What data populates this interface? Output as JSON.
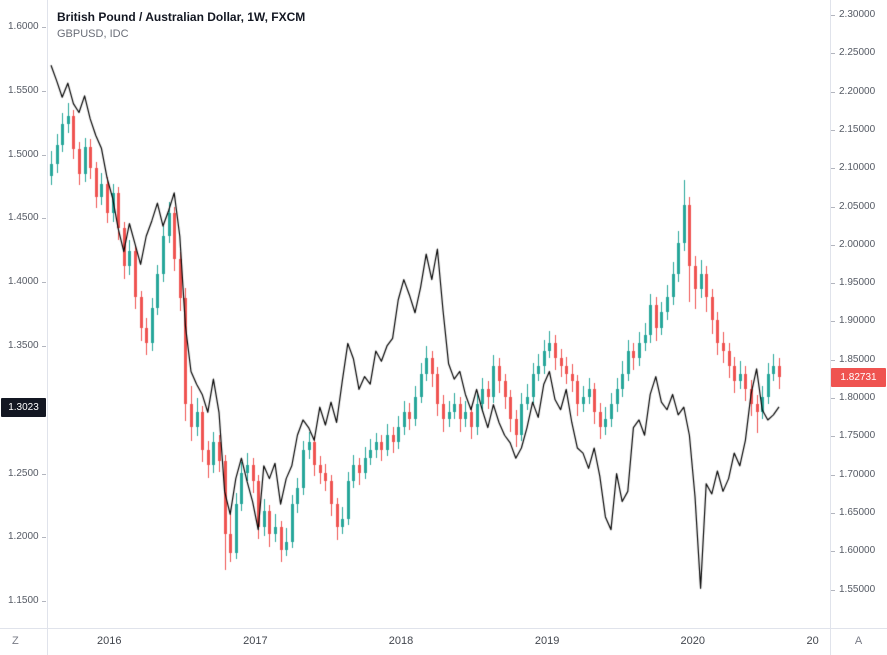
{
  "header": {
    "title": "British Pound / Australian Dollar, 1W, FXCM",
    "subtitle": "GBPUSD, IDC"
  },
  "toolbar": {
    "timezone_label": "Z",
    "autoscale_label": "A"
  },
  "axes": {
    "left": {
      "tick_labels": [
        "1.6000",
        "1.5500",
        "1.5000",
        "1.4500",
        "1.4000",
        "1.3500",
        "1.2500",
        "1.2000",
        "1.1500"
      ],
      "badge": {
        "text": "1.3023",
        "value": 1.3023,
        "bg": "#131722"
      }
    },
    "right": {
      "tick_labels": [
        "2.30000",
        "2.25000",
        "2.20000",
        "2.15000",
        "2.10000",
        "2.05000",
        "2.00000",
        "1.95000",
        "1.90000",
        "1.85000",
        "1.80000",
        "1.75000",
        "1.70000",
        "1.65000",
        "1.60000",
        "1.55000"
      ],
      "badge": {
        "text": "1.82731",
        "value": 1.82731,
        "bg": "#ef5350"
      }
    },
    "time": {
      "labels": [
        {
          "text": "2016",
          "i": 10.4
        },
        {
          "text": "2017",
          "i": 36.5
        },
        {
          "text": "2018",
          "i": 62.5
        },
        {
          "text": "2019",
          "i": 88.6
        },
        {
          "text": "2020",
          "i": 114.6
        },
        {
          "text": "20",
          "i": 136
        }
      ]
    }
  },
  "chart_data": {
    "type": "mixed",
    "timeframe": "1W",
    "left_ylim": [
      1.1289,
      1.6212
    ],
    "right_ylim": [
      1.4998,
      2.3196
    ],
    "series": [
      {
        "name": "British Pound / Australian Dollar, 1W, FXCM",
        "type": "candlestick",
        "axis": "right",
        "up_color": "#26a69a",
        "down_color": "#ef5350",
        "last": 1.82731,
        "ohlc": [
          [
            2.09,
            2.122,
            2.078,
            2.105
          ],
          [
            2.105,
            2.145,
            2.094,
            2.13
          ],
          [
            2.13,
            2.172,
            2.121,
            2.158
          ],
          [
            2.158,
            2.185,
            2.146,
            2.168
          ],
          [
            2.168,
            2.176,
            2.112,
            2.125
          ],
          [
            2.125,
            2.134,
            2.078,
            2.092
          ],
          [
            2.092,
            2.14,
            2.082,
            2.128
          ],
          [
            2.128,
            2.138,
            2.086,
            2.1
          ],
          [
            2.1,
            2.108,
            2.048,
            2.062
          ],
          [
            2.062,
            2.094,
            2.052,
            2.08
          ],
          [
            2.08,
            2.088,
            2.028,
            2.042
          ],
          [
            2.042,
            2.08,
            2.03,
            2.068
          ],
          [
            2.068,
            2.076,
            2.006,
            2.022
          ],
          [
            2.022,
            2.03,
            1.956,
            1.972
          ],
          [
            1.972,
            2.006,
            1.96,
            1.992
          ],
          [
            1.992,
            1.998,
            1.916,
            1.932
          ],
          [
            1.932,
            1.94,
            1.874,
            1.892
          ],
          [
            1.892,
            1.904,
            1.856,
            1.872
          ],
          [
            1.872,
            1.93,
            1.862,
            1.918
          ],
          [
            1.918,
            1.974,
            1.908,
            1.962
          ],
          [
            1.962,
            2.024,
            1.952,
            2.012
          ],
          [
            2.012,
            2.056,
            2.002,
            2.042
          ],
          [
            2.042,
            2.05,
            1.966,
            1.982
          ],
          [
            1.982,
            1.99,
            1.914,
            1.93
          ],
          [
            1.93,
            1.944,
            1.77,
            1.792
          ],
          [
            1.792,
            1.816,
            1.744,
            1.762
          ],
          [
            1.762,
            1.8,
            1.75,
            1.782
          ],
          [
            1.782,
            1.79,
            1.716,
            1.732
          ],
          [
            1.732,
            1.744,
            1.696,
            1.712
          ],
          [
            1.712,
            1.756,
            1.702,
            1.742
          ],
          [
            1.742,
            1.752,
            1.704,
            1.718
          ],
          [
            1.718,
            1.726,
            1.575,
            1.622
          ],
          [
            1.622,
            1.648,
            1.586,
            1.598
          ],
          [
            1.598,
            1.676,
            1.59,
            1.662
          ],
          [
            1.662,
            1.716,
            1.652,
            1.702
          ],
          [
            1.702,
            1.728,
            1.692,
            1.712
          ],
          [
            1.712,
            1.722,
            1.676,
            1.692
          ],
          [
            1.692,
            1.7,
            1.616,
            1.632
          ],
          [
            1.632,
            1.668,
            1.62,
            1.652
          ],
          [
            1.652,
            1.66,
            1.606,
            1.622
          ],
          [
            1.622,
            1.648,
            1.612,
            1.632
          ],
          [
            1.632,
            1.64,
            1.586,
            1.602
          ],
          [
            1.602,
            1.63,
            1.594,
            1.612
          ],
          [
            1.612,
            1.674,
            1.604,
            1.662
          ],
          [
            1.662,
            1.696,
            1.65,
            1.682
          ],
          [
            1.682,
            1.744,
            1.674,
            1.732
          ],
          [
            1.732,
            1.756,
            1.72,
            1.742
          ],
          [
            1.742,
            1.75,
            1.698,
            1.712
          ],
          [
            1.712,
            1.724,
            1.688,
            1.702
          ],
          [
            1.702,
            1.714,
            1.678,
            1.692
          ],
          [
            1.692,
            1.7,
            1.646,
            1.662
          ],
          [
            1.662,
            1.67,
            1.615,
            1.632
          ],
          [
            1.632,
            1.658,
            1.622,
            1.642
          ],
          [
            1.642,
            1.704,
            1.634,
            1.692
          ],
          [
            1.692,
            1.726,
            1.682,
            1.712
          ],
          [
            1.712,
            1.722,
            1.686,
            1.702
          ],
          [
            1.702,
            1.736,
            1.694,
            1.722
          ],
          [
            1.722,
            1.746,
            1.712,
            1.732
          ],
          [
            1.732,
            1.754,
            1.722,
            1.742
          ],
          [
            1.742,
            1.752,
            1.718,
            1.732
          ],
          [
            1.732,
            1.766,
            1.724,
            1.752
          ],
          [
            1.752,
            1.762,
            1.728,
            1.742
          ],
          [
            1.742,
            1.776,
            1.734,
            1.762
          ],
          [
            1.762,
            1.796,
            1.752,
            1.782
          ],
          [
            1.782,
            1.794,
            1.758,
            1.772
          ],
          [
            1.772,
            1.816,
            1.764,
            1.802
          ],
          [
            1.802,
            1.846,
            1.794,
            1.832
          ],
          [
            1.832,
            1.868,
            1.822,
            1.852
          ],
          [
            1.852,
            1.862,
            1.814,
            1.832
          ],
          [
            1.832,
            1.84,
            1.776,
            1.792
          ],
          [
            1.792,
            1.804,
            1.756,
            1.772
          ],
          [
            1.772,
            1.796,
            1.762,
            1.782
          ],
          [
            1.782,
            1.806,
            1.772,
            1.792
          ],
          [
            1.792,
            1.802,
            1.756,
            1.772
          ],
          [
            1.772,
            1.796,
            1.762,
            1.782
          ],
          [
            1.782,
            1.79,
            1.746,
            1.762
          ],
          [
            1.762,
            1.806,
            1.752,
            1.792
          ],
          [
            1.792,
            1.826,
            1.782,
            1.812
          ],
          [
            1.812,
            1.822,
            1.786,
            1.802
          ],
          [
            1.802,
            1.856,
            1.794,
            1.842
          ],
          [
            1.842,
            1.852,
            1.806,
            1.822
          ],
          [
            1.822,
            1.832,
            1.786,
            1.802
          ],
          [
            1.802,
            1.81,
            1.756,
            1.772
          ],
          [
            1.772,
            1.784,
            1.736,
            1.752
          ],
          [
            1.752,
            1.806,
            1.744,
            1.792
          ],
          [
            1.792,
            1.818,
            1.784,
            1.802
          ],
          [
            1.802,
            1.846,
            1.794,
            1.832
          ],
          [
            1.832,
            1.858,
            1.822,
            1.842
          ],
          [
            1.842,
            1.876,
            1.832,
            1.862
          ],
          [
            1.862,
            1.888,
            1.852,
            1.872
          ],
          [
            1.872,
            1.882,
            1.836,
            1.852
          ],
          [
            1.852,
            1.864,
            1.828,
            1.842
          ],
          [
            1.842,
            1.854,
            1.818,
            1.832
          ],
          [
            1.832,
            1.844,
            1.808,
            1.822
          ],
          [
            1.822,
            1.83,
            1.776,
            1.792
          ],
          [
            1.792,
            1.816,
            1.782,
            1.802
          ],
          [
            1.802,
            1.826,
            1.792,
            1.812
          ],
          [
            1.812,
            1.82,
            1.766,
            1.782
          ],
          [
            1.782,
            1.794,
            1.746,
            1.762
          ],
          [
            1.762,
            1.788,
            1.752,
            1.772
          ],
          [
            1.772,
            1.806,
            1.762,
            1.792
          ],
          [
            1.792,
            1.826,
            1.782,
            1.812
          ],
          [
            1.812,
            1.848,
            1.802,
            1.832
          ],
          [
            1.832,
            1.876,
            1.822,
            1.862
          ],
          [
            1.862,
            1.872,
            1.836,
            1.852
          ],
          [
            1.852,
            1.886,
            1.842,
            1.872
          ],
          [
            1.872,
            1.898,
            1.862,
            1.882
          ],
          [
            1.882,
            1.936,
            1.872,
            1.922
          ],
          [
            1.922,
            1.932,
            1.874,
            1.892
          ],
          [
            1.892,
            1.926,
            1.882,
            1.912
          ],
          [
            1.912,
            1.948,
            1.902,
            1.932
          ],
          [
            1.932,
            1.978,
            1.922,
            1.962
          ],
          [
            1.962,
            2.018,
            1.952,
            2.002
          ],
          [
            2.002,
            2.085,
            1.992,
            2.052
          ],
          [
            2.052,
            2.062,
            1.926,
            1.972
          ],
          [
            1.972,
            1.986,
            1.916,
            1.942
          ],
          [
            1.942,
            1.98,
            1.93,
            1.962
          ],
          [
            1.962,
            1.972,
            1.912,
            1.932
          ],
          [
            1.932,
            1.942,
            1.884,
            1.902
          ],
          [
            1.902,
            1.912,
            1.856,
            1.872
          ],
          [
            1.872,
            1.886,
            1.846,
            1.862
          ],
          [
            1.862,
            1.872,
            1.826,
            1.842
          ],
          [
            1.842,
            1.854,
            1.806,
            1.822
          ],
          [
            1.822,
            1.848,
            1.812,
            1.832
          ],
          [
            1.832,
            1.842,
            1.796,
            1.812
          ],
          [
            1.812,
            1.824,
            1.776,
            1.792
          ],
          [
            1.792,
            1.804,
            1.755,
            1.782
          ],
          [
            1.782,
            1.816,
            1.772,
            1.802
          ],
          [
            1.802,
            1.846,
            1.792,
            1.832
          ],
          [
            1.832,
            1.858,
            1.822,
            1.842
          ],
          [
            1.842,
            1.852,
            1.812,
            1.82731
          ]
        ]
      },
      {
        "name": "GBPUSD, IDC",
        "type": "line",
        "axis": "left",
        "color": "#000000",
        "last": 1.3023,
        "values": [
          1.57,
          1.558,
          1.545,
          1.556,
          1.54,
          1.533,
          1.546,
          1.528,
          1.515,
          1.505,
          1.482,
          1.466,
          1.442,
          1.424,
          1.446,
          1.43,
          1.414,
          1.436,
          1.448,
          1.462,
          1.444,
          1.456,
          1.47,
          1.436,
          1.366,
          1.33,
          1.32,
          1.312,
          1.298,
          1.324,
          1.298,
          1.236,
          1.218,
          1.246,
          1.262,
          1.244,
          1.228,
          1.206,
          1.256,
          1.246,
          1.258,
          1.226,
          1.246,
          1.256,
          1.28,
          1.292,
          1.286,
          1.276,
          1.302,
          1.288,
          1.306,
          1.29,
          1.322,
          1.352,
          1.34,
          1.316,
          1.326,
          1.32,
          1.346,
          1.338,
          1.35,
          1.356,
          1.386,
          1.402,
          1.39,
          1.376,
          1.396,
          1.422,
          1.402,
          1.426,
          1.378,
          1.336,
          1.324,
          1.33,
          1.312,
          1.3,
          1.316,
          1.3,
          1.286,
          1.304,
          1.29,
          1.28,
          1.274,
          1.262,
          1.27,
          1.286,
          1.306,
          1.294,
          1.32,
          1.33,
          1.308,
          1.3,
          1.316,
          1.29,
          1.27,
          1.266,
          1.254,
          1.27,
          1.248,
          1.216,
          1.206,
          1.25,
          1.228,
          1.236,
          1.286,
          1.292,
          1.28,
          1.312,
          1.326,
          1.306,
          1.3,
          1.312,
          1.296,
          1.302,
          1.28,
          1.232,
          1.16,
          1.242,
          1.234,
          1.252,
          1.236,
          1.246,
          1.266,
          1.256,
          1.276,
          1.312,
          1.332,
          1.3,
          1.292,
          1.296,
          1.3023
        ]
      }
    ]
  }
}
